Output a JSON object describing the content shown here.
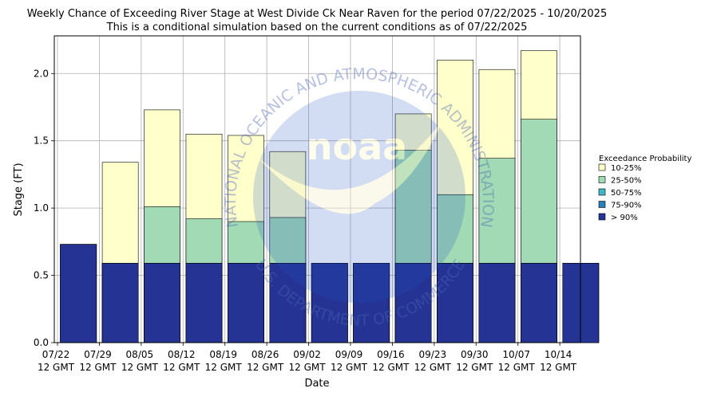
{
  "chart_data": {
    "type": "bar",
    "title": "Weekly Chance of Exceeding River Stage at West Divide Ck Near Raven for the period 07/22/2025 - 10/20/2025",
    "subtitle": "This is a conditional simulation based on the current conditions as of 07/22/2025",
    "xlabel": "Date",
    "ylabel": "Stage (FT)",
    "ylim": [
      0,
      2.28
    ],
    "yticks": [
      0.0,
      0.5,
      1.0,
      1.5,
      2.0
    ],
    "ytick_labels": [
      "0.0",
      "0.5",
      "1.0",
      "1.5",
      "2.0"
    ],
    "xtick_labels": [
      [
        "07/22",
        "12 GMT"
      ],
      [
        "07/29",
        "12 GMT"
      ],
      [
        "08/05",
        "12 GMT"
      ],
      [
        "08/12",
        "12 GMT"
      ],
      [
        "08/19",
        "12 GMT"
      ],
      [
        "08/26",
        "12 GMT"
      ],
      [
        "09/02",
        "12 GMT"
      ],
      [
        "09/09",
        "12 GMT"
      ],
      [
        "09/16",
        "12 GMT"
      ],
      [
        "09/23",
        "12 GMT"
      ],
      [
        "09/30",
        "12 GMT"
      ],
      [
        "10/07",
        "12 GMT"
      ],
      [
        "10/14",
        "12 GMT"
      ]
    ],
    "grid": true,
    "legend": {
      "title": "Exceedance Probability",
      "placement": "right"
    },
    "series": [
      {
        "name": "> 90%",
        "color": "#253494",
        "values": [
          0.73,
          0.59,
          0.59,
          0.59,
          0.59,
          0.59,
          0.59,
          0.59,
          0.59,
          0.59,
          0.59,
          0.59,
          0.59
        ]
      },
      {
        "name": "75-90%",
        "color": "#2c7fb8",
        "values": [
          0.73,
          0.59,
          0.59,
          0.59,
          0.59,
          0.59,
          0.59,
          0.59,
          0.59,
          0.59,
          0.59,
          0.59,
          0.59
        ]
      },
      {
        "name": "50-75%",
        "color": "#41b6c4",
        "values": [
          0.73,
          0.59,
          0.59,
          0.59,
          0.59,
          0.59,
          0.59,
          0.59,
          0.59,
          0.59,
          0.59,
          0.59,
          0.59
        ]
      },
      {
        "name": "25-50%",
        "color": "#a1dab4",
        "values": [
          0.73,
          0.59,
          1.01,
          0.92,
          0.9,
          0.93,
          0.59,
          0.59,
          1.43,
          1.1,
          1.37,
          1.66,
          null
        ]
      },
      {
        "name": "10-25%",
        "color": "#ffffcc",
        "values": [
          0.73,
          1.34,
          1.73,
          1.55,
          1.54,
          1.42,
          0.59,
          0.59,
          1.7,
          2.1,
          2.03,
          2.17,
          null
        ]
      }
    ]
  },
  "watermark": {
    "text_top": "NATIONAL OCEANIC AND ATMOSPHERIC ADMINISTRATION",
    "text_bottom": "U.S. DEPARTMENT OF COMMERCE",
    "logo_text": "noaa"
  }
}
